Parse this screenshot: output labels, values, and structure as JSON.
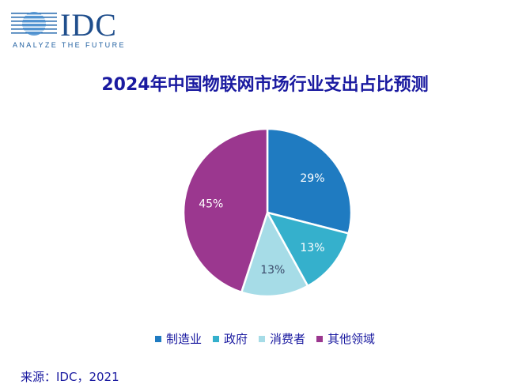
{
  "logo": {
    "name": "IDC",
    "tagline": "ANALYZE THE FUTURE"
  },
  "title": "2024年中国物联网市场行业支出占比预测",
  "source": "来源：IDC，2021",
  "chart_data": {
    "type": "pie",
    "title": "2024年中国物联网市场行业支出占比预测",
    "categories": [
      "制造业",
      "政府",
      "消费者",
      "其他领域"
    ],
    "values": [
      29,
      13,
      13,
      45
    ],
    "labels": [
      "29%",
      "13%",
      "13%",
      "45%"
    ],
    "colors": [
      "#1f7bc1",
      "#35b0cc",
      "#a6dce7",
      "#9b378f"
    ],
    "label_colors": [
      "#ffffff",
      "#ffffff",
      "#3a4a6a",
      "#ffffff"
    ],
    "start_angle": "12 o'clock, clockwise",
    "legend_position": "bottom"
  }
}
